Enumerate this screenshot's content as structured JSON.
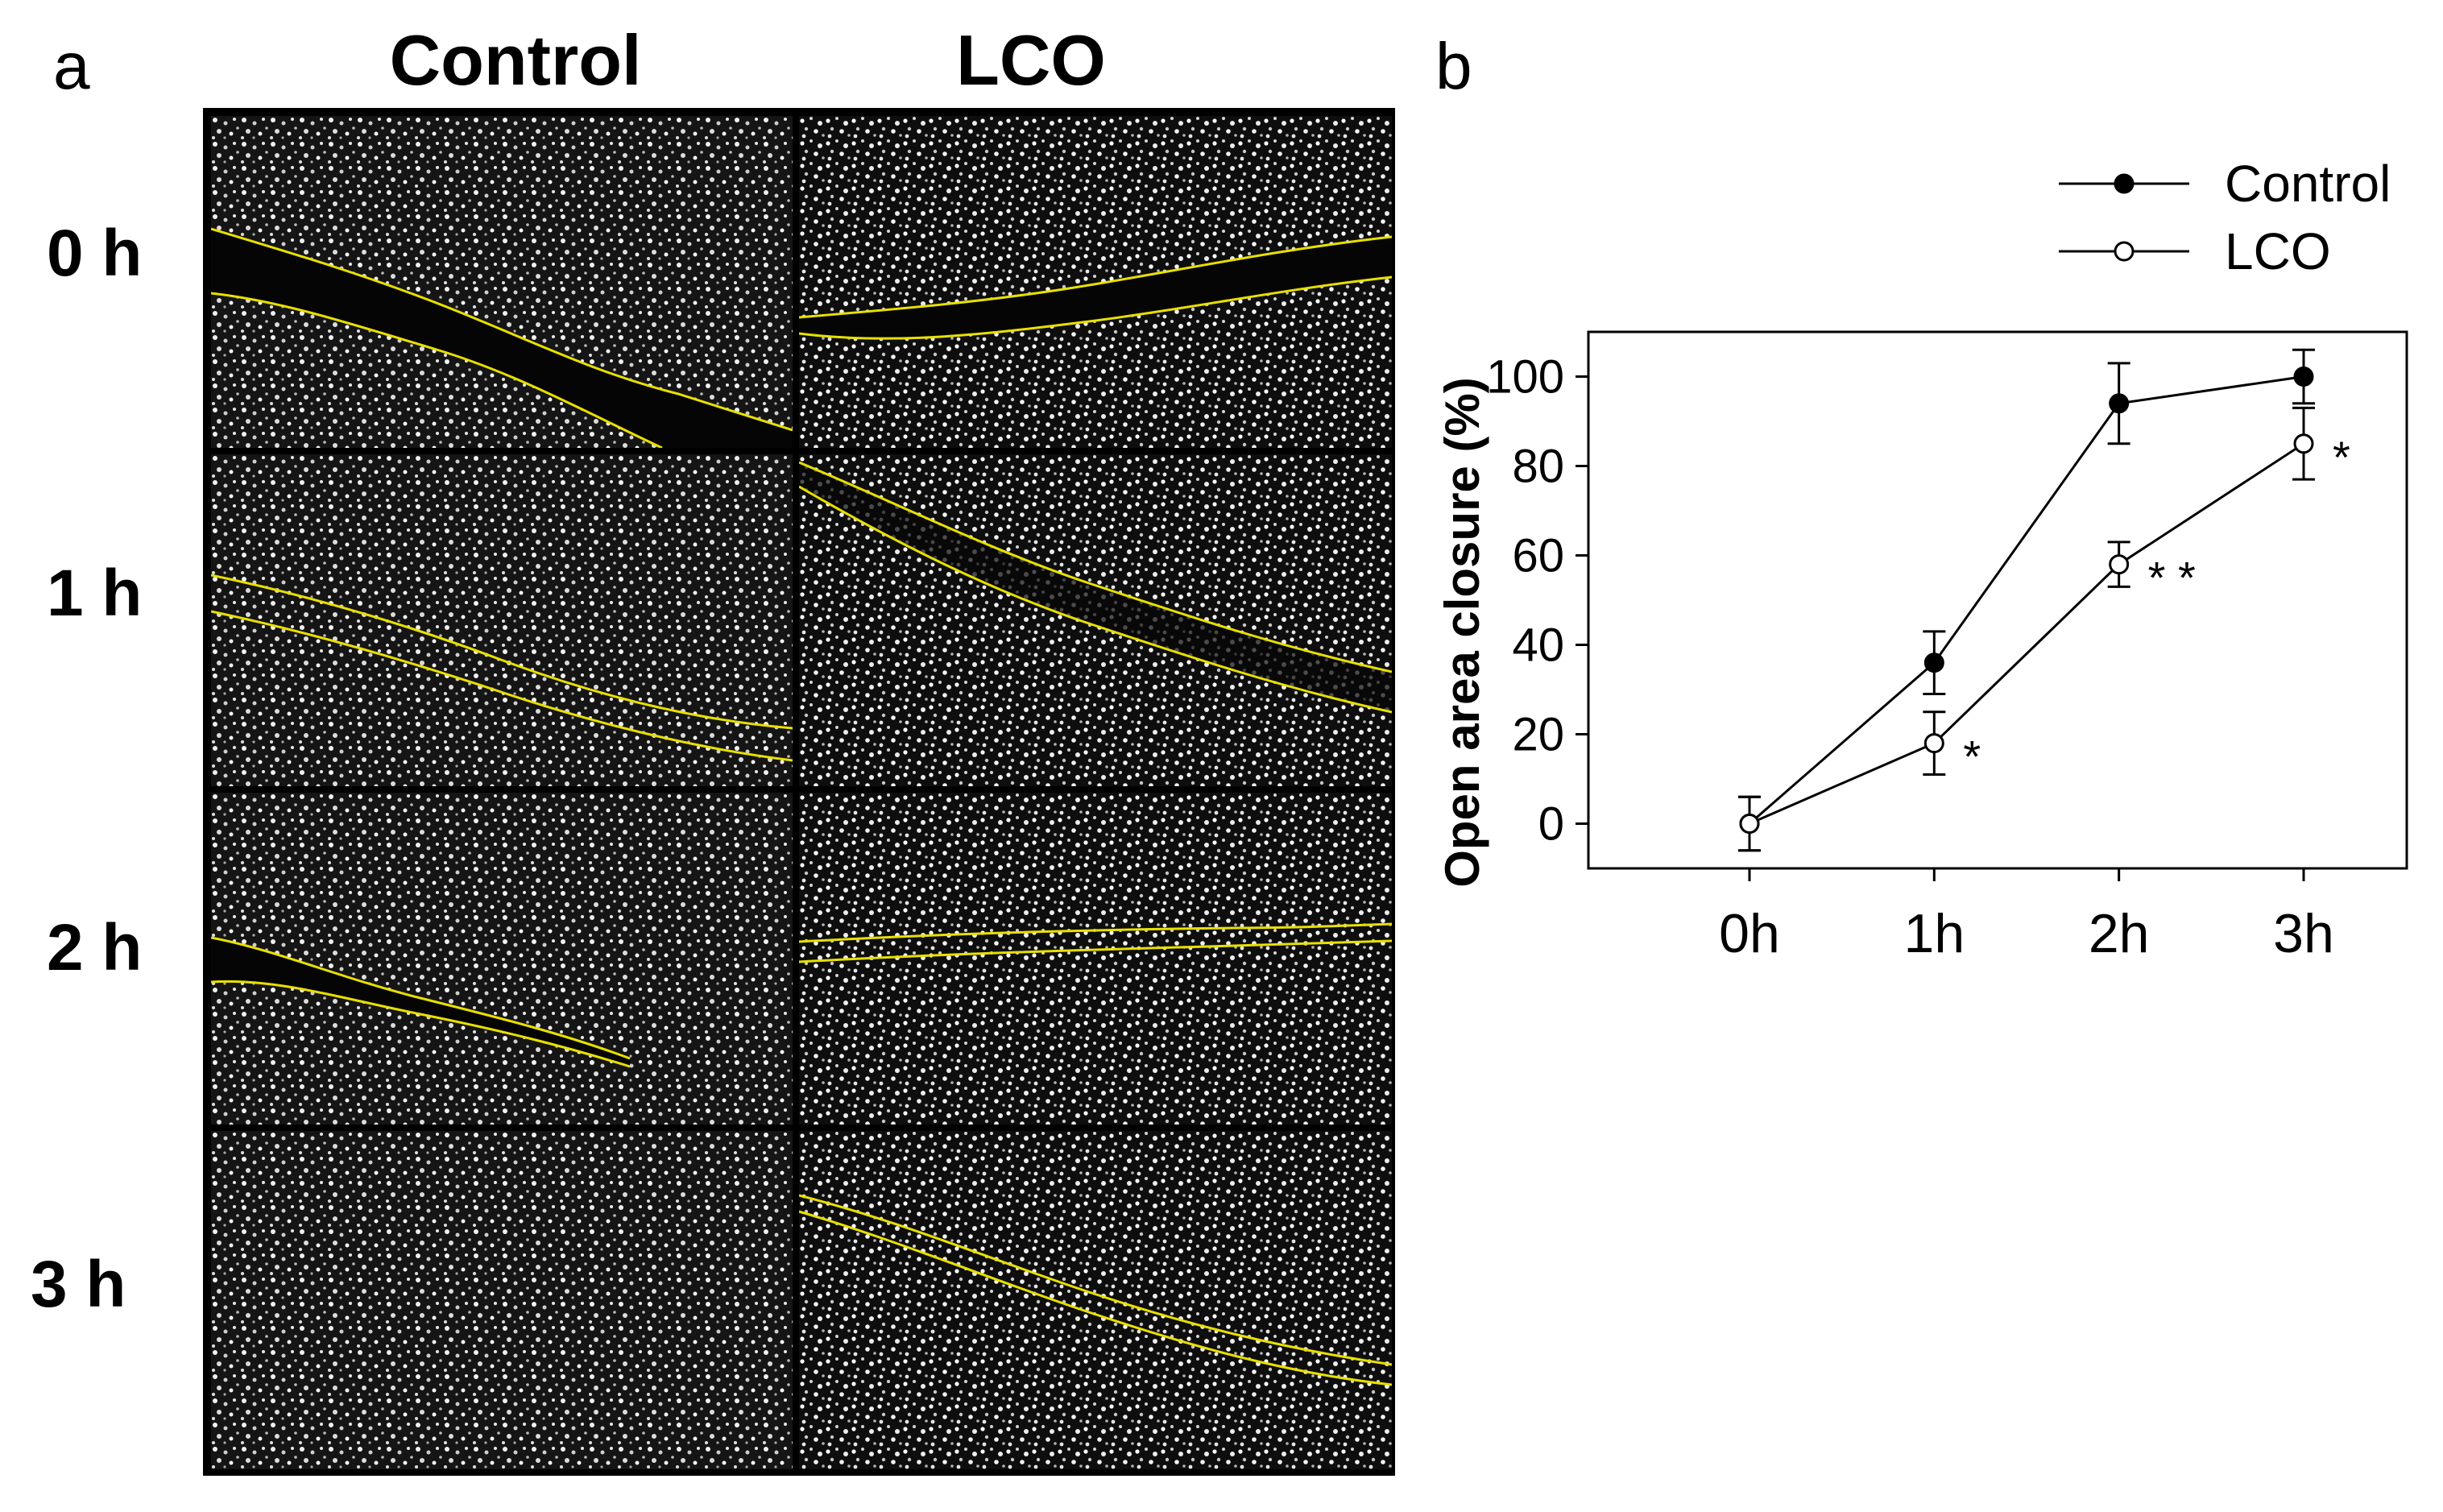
{
  "panel_a": {
    "letter": "a",
    "columns": [
      "Control",
      "LCO"
    ],
    "rows": [
      "0 h",
      "1 h",
      "2 h",
      "3 h"
    ]
  },
  "panel_b": {
    "letter": "b"
  },
  "colors": {
    "scratch_outline": "#e8e000",
    "frame": "#000000"
  },
  "chart_data": {
    "type": "line",
    "categories": [
      "0h",
      "1h",
      "2h",
      "3h"
    ],
    "xlabel": "",
    "ylabel": "Open area closure (%)",
    "ylim": [
      -10,
      110
    ],
    "yticks": [
      0,
      20,
      40,
      60,
      80,
      100
    ],
    "legend_position": "top-right",
    "series": [
      {
        "name": "Control",
        "marker": "filled-circle",
        "values": [
          0,
          36,
          94,
          100
        ],
        "errors": [
          6,
          7,
          9,
          6
        ],
        "annotations": [
          "",
          "",
          "",
          ""
        ]
      },
      {
        "name": "LCO",
        "marker": "open-circle",
        "values": [
          0,
          18,
          58,
          85
        ],
        "errors": [
          6,
          7,
          5,
          8
        ],
        "annotations": [
          "",
          "*",
          "**",
          "*"
        ]
      }
    ]
  }
}
